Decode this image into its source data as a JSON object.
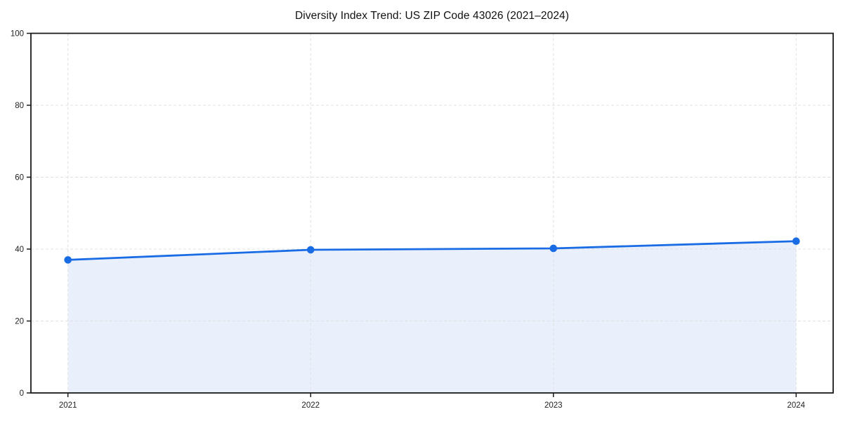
{
  "chart_data": {
    "type": "area",
    "title": "Diversity Index Trend: US ZIP Code 43026 (2021–2024)",
    "categories": [
      "2021",
      "2022",
      "2023",
      "2024"
    ],
    "series": [
      {
        "name": "Diversity Index",
        "values": [
          37.0,
          39.8,
          40.2,
          42.2
        ]
      }
    ],
    "xlabel": "",
    "ylabel": "",
    "ylim": [
      0,
      100
    ],
    "yticks": [
      0,
      20,
      40,
      60,
      80,
      100
    ],
    "grid": "on",
    "grid_style": "dashed",
    "legend_position": "none",
    "marker": "circle",
    "colors": {
      "line": "#1a6ce4",
      "marker": "#1a6ce4",
      "fill": "#e9f0fc",
      "grid": "#e0e0e0",
      "spine": "#1a1a1a",
      "tick_label": "#222222",
      "title": "#111111"
    }
  }
}
